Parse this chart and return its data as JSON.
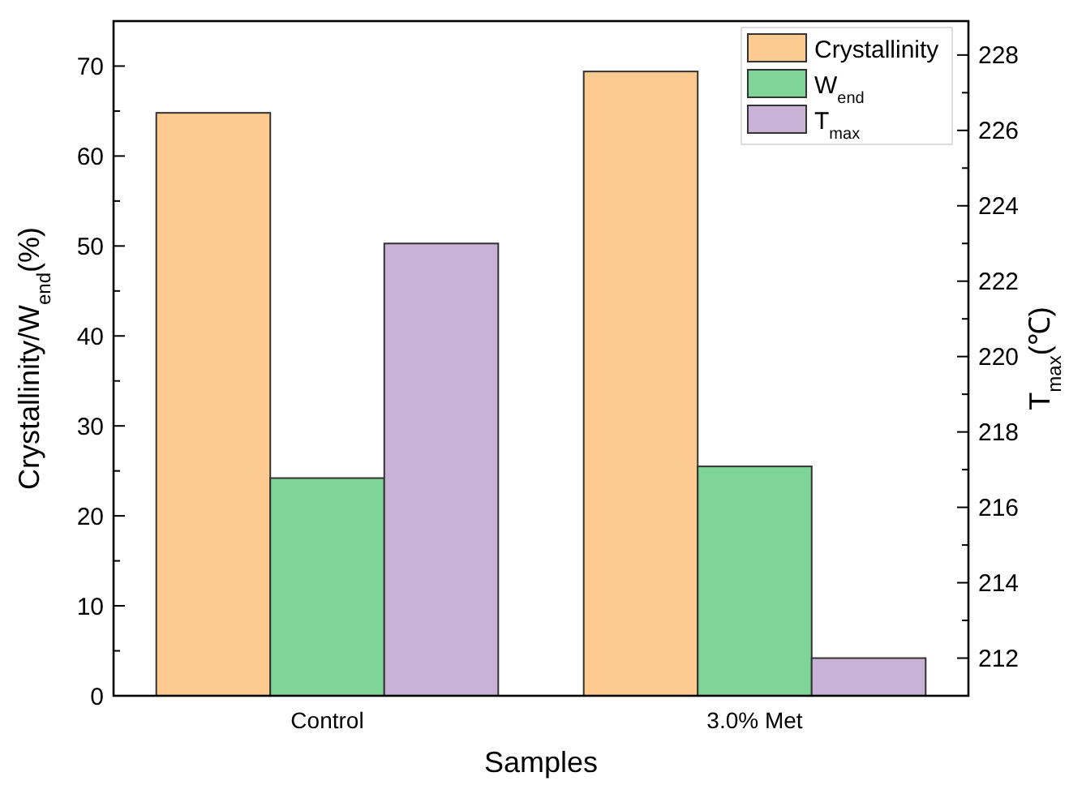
{
  "chart_data": {
    "type": "bar",
    "xlabel": "Samples",
    "ylabel": "Crystallinity/W$_{end}$(%)",
    "y2label": "T$_{max}$(℃)",
    "categories": [
      "Control",
      "3.0% Met"
    ],
    "series": [
      {
        "name": "Crystallinity",
        "color": "#fdca8f",
        "values": [
          64.8,
          69.4
        ]
      },
      {
        "name": "W$_{end}$",
        "color": "#7fd597",
        "values": [
          24.2,
          25.5
        ]
      },
      {
        "name": "T$_{max}$",
        "color": "#c8b2d6",
        "values": [
          223,
          212
        ],
        "axis": "y2"
      }
    ],
    "ylim": [
      0,
      75
    ],
    "yticks": [
      0,
      {
        "value": 5,
        "label": null
      },
      10,
      {
        "value": 15,
        "label": null
      },
      20,
      {
        "value": 25,
        "label": null
      },
      30,
      {
        "value": 35,
        "label": null
      },
      40,
      {
        "value": 45,
        "label": null
      },
      50,
      {
        "value": 55,
        "label": null
      },
      60,
      {
        "value": 65,
        "label": null
      },
      70
    ],
    "y2lim": [
      211,
      228.9
    ],
    "y2ticks": [
      212,
      {
        "value": 213,
        "label": null
      },
      214,
      {
        "value": 215,
        "label": null
      },
      216,
      {
        "value": 217,
        "label": null
      },
      218,
      {
        "value": 219,
        "label": null
      },
      220,
      {
        "value": 221,
        "label": null
      },
      222,
      {
        "value": 223,
        "label": null
      },
      224,
      {
        "value": 225,
        "label": null
      },
      226,
      {
        "value": 227,
        "label": null
      },
      228
    ],
    "legend": "top right",
    "grid": false
  }
}
